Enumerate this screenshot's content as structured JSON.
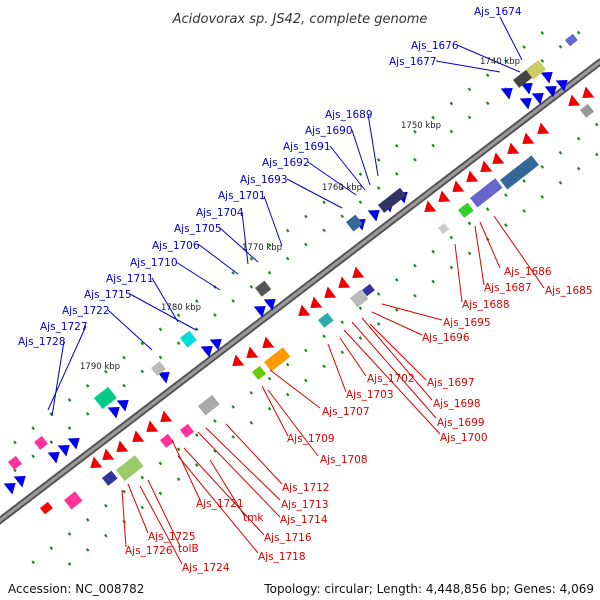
{
  "title": "Acidovorax sp. JS42, complete genome",
  "footer": {
    "accession": "Accession: NC_008782",
    "summary": "Topology: circular; Length: 4,448,856 bp; Genes: 4,069"
  },
  "colors": {
    "forward_label": "#0000cc",
    "reverse_label": "#dd0000",
    "forward_gene": "#0000ee",
    "reverse_gene": "#ee0000",
    "backbone": "#777777",
    "tick": "#1a8a1a"
  },
  "kbp_marks": [
    "1740 kbp",
    "1750 kbp",
    "1760 kbp",
    "1770 kbp",
    "1780 kbp",
    "1790 kbp"
  ],
  "forward_labels": [
    "Ajs_1674",
    "Ajs_1676",
    "Ajs_1677",
    "Ajs_1689",
    "Ajs_1690",
    "Ajs_1691",
    "Ajs_1692",
    "Ajs_1693",
    "Ajs_1701",
    "Ajs_1704",
    "Ajs_1705",
    "Ajs_1706",
    "Ajs_1710",
    "Ajs_1711",
    "Ajs_1715",
    "Ajs_1722",
    "Ajs_1727",
    "Ajs_1728"
  ],
  "reverse_labels": [
    "Ajs_1686",
    "Ajs_1687",
    "Ajs_1685",
    "Ajs_1688",
    "Ajs_1695",
    "Ajs_1696",
    "Ajs_1697",
    "Ajs_1698",
    "Ajs_1699",
    "Ajs_1700",
    "Ajs_1702",
    "Ajs_1703",
    "Ajs_1707",
    "Ajs_1709",
    "Ajs_1708",
    "Ajs_1712",
    "Ajs_1713",
    "Ajs_1714",
    "Ajs_1716",
    "Ajs_1718",
    "Ajs_1721",
    "tmk",
    "Ajs_1725",
    "Ajs_1726",
    "tolB",
    "Ajs_1724"
  ]
}
